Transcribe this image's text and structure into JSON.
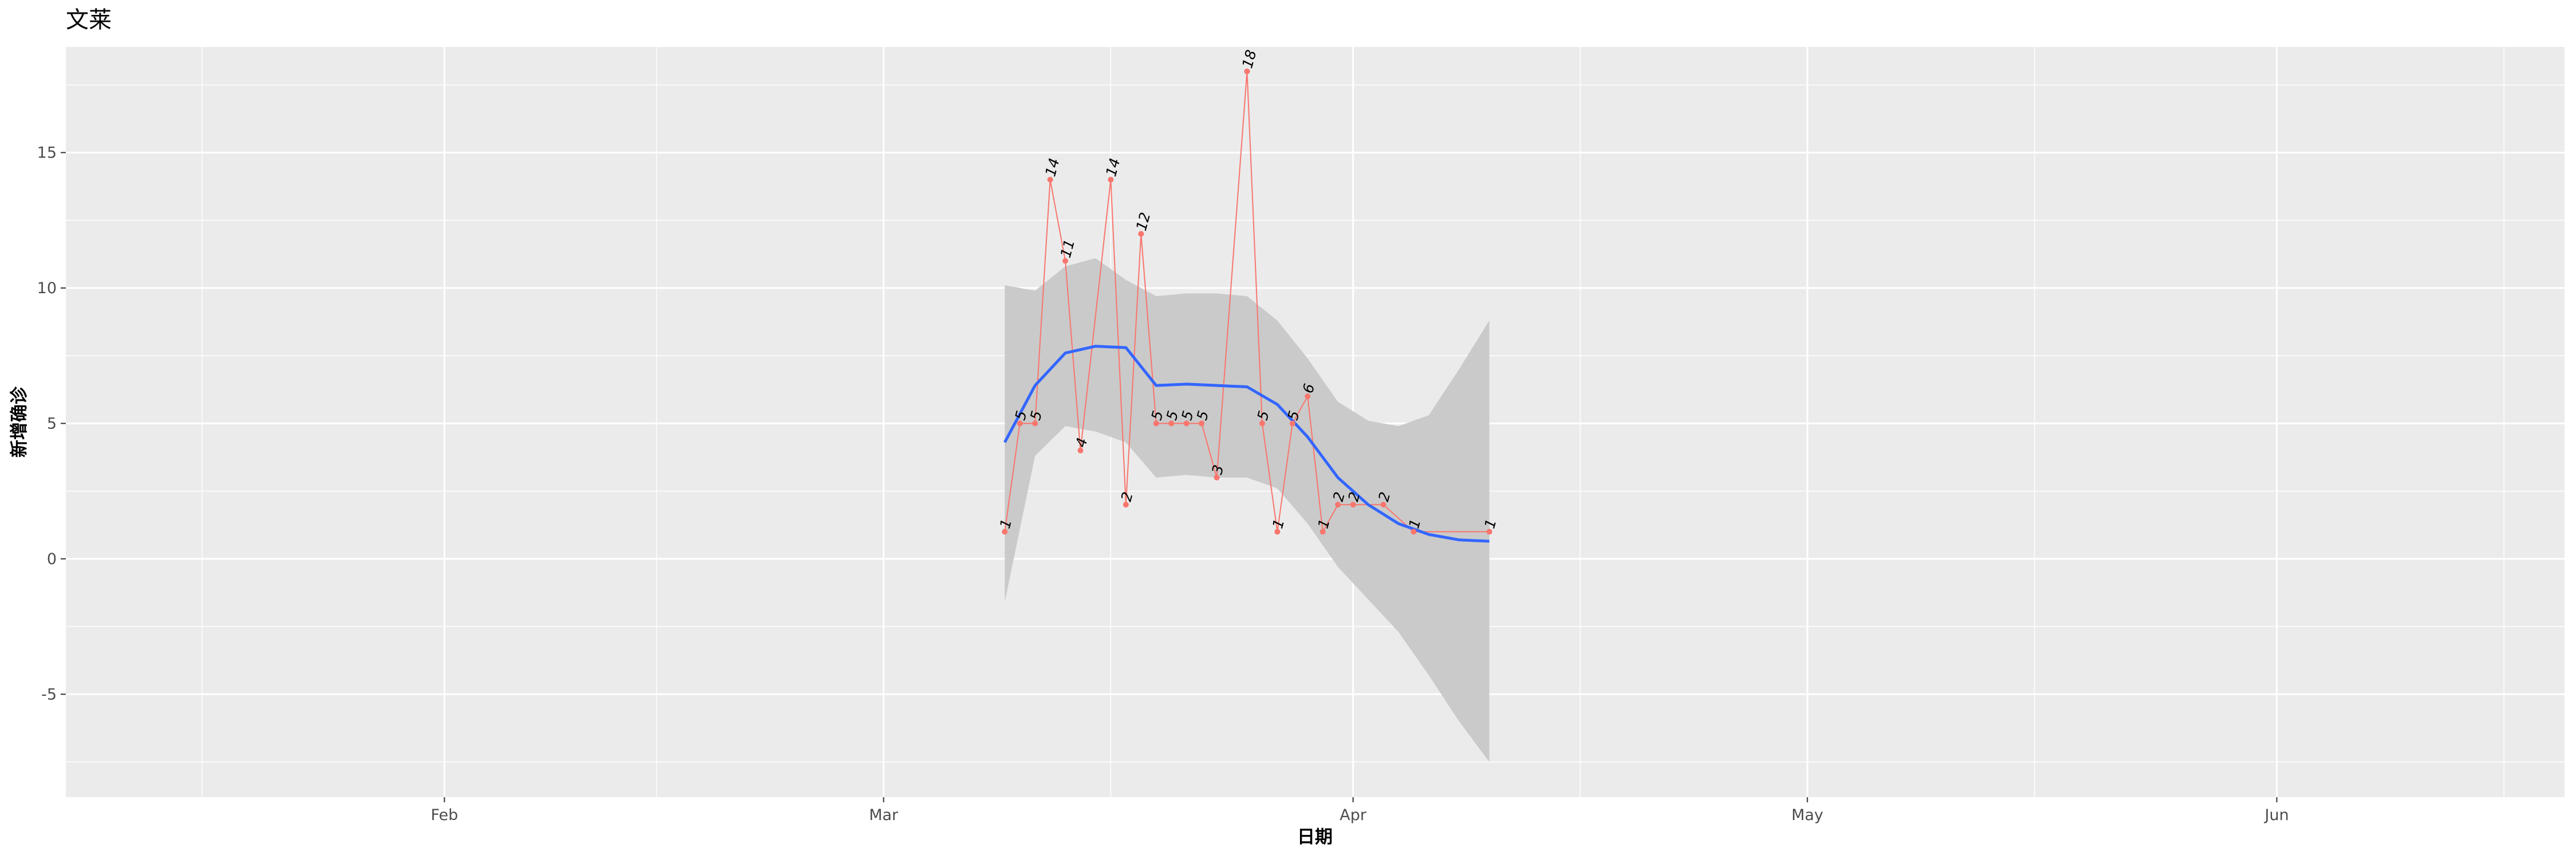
{
  "chart_data": {
    "type": "line",
    "title": "文莱",
    "xlabel": "日期",
    "ylabel": "新增确诊",
    "x_axis": {
      "type": "date",
      "range": [
        "2020-01-07",
        "2020-06-20"
      ],
      "ticks": [
        {
          "date": "2020-02-01",
          "label": "Feb"
        },
        {
          "date": "2020-03-01",
          "label": "Mar"
        },
        {
          "date": "2020-04-01",
          "label": "Apr"
        },
        {
          "date": "2020-05-01",
          "label": "May"
        },
        {
          "date": "2020-06-01",
          "label": "Jun"
        }
      ],
      "minor_ticks": [
        "2020-01-16",
        "2020-02-15",
        "2020-03-16",
        "2020-04-16",
        "2020-05-16",
        "2020-06-16"
      ]
    },
    "y_axis": {
      "range": [
        -8.8,
        18.9
      ],
      "ticks": [
        {
          "value": -5,
          "label": "-5"
        },
        {
          "value": 0,
          "label": "0"
        },
        {
          "value": 5,
          "label": "5"
        },
        {
          "value": 10,
          "label": "10"
        },
        {
          "value": 15,
          "label": "15"
        }
      ],
      "minor_ticks": [
        -7.5,
        -2.5,
        2.5,
        7.5,
        12.5,
        17.5
      ]
    },
    "grid": true,
    "colors": {
      "panel_background": "#ebebeb",
      "grid_line": "#ffffff",
      "series_line": "#f8766d",
      "smooth_line": "#3366ff",
      "confidence_band": "#c8c8c8"
    },
    "series": [
      {
        "x": [
          "2020-03-09",
          "2020-03-10",
          "2020-03-11",
          "2020-03-12",
          "2020-03-13",
          "2020-03-14",
          "2020-03-16",
          "2020-03-17",
          "2020-03-18",
          "2020-03-19",
          "2020-03-20",
          "2020-03-21",
          "2020-03-22",
          "2020-03-23",
          "2020-03-25",
          "2020-03-26",
          "2020-03-27",
          "2020-03-28",
          "2020-03-29",
          "2020-03-30",
          "2020-03-31",
          "2020-04-01",
          "2020-04-03",
          "2020-04-05",
          "2020-04-10"
        ],
        "values": [
          1,
          5,
          5,
          14,
          11,
          4,
          14,
          2,
          12,
          5,
          5,
          5,
          5,
          3,
          18,
          5,
          1,
          5,
          6,
          1,
          2,
          2,
          2,
          1,
          1
        ],
        "labels": [
          "1",
          "5",
          "5",
          "14",
          "11",
          "4",
          "14",
          "2",
          "12",
          "5",
          "5",
          "5",
          "5",
          "3",
          "18",
          "5",
          "1",
          "5",
          "6",
          "1",
          "2",
          "2",
          "2",
          "1",
          "1"
        ]
      }
    ],
    "smooth": {
      "method": "loess",
      "x": [
        "2020-03-09",
        "2020-03-11",
        "2020-03-13",
        "2020-03-15",
        "2020-03-17",
        "2020-03-19",
        "2020-03-21",
        "2020-03-23",
        "2020-03-25",
        "2020-03-27",
        "2020-03-29",
        "2020-03-31",
        "2020-04-02",
        "2020-04-04",
        "2020-04-06",
        "2020-04-08",
        "2020-04-10"
      ],
      "fit": [
        4.3,
        6.4,
        7.6,
        7.85,
        7.8,
        6.4,
        6.45,
        6.4,
        6.35,
        5.7,
        4.5,
        3.0,
        2.0,
        1.3,
        0.9,
        0.7,
        0.65
      ],
      "lower": [
        -1.6,
        3.8,
        4.9,
        4.7,
        4.3,
        3.0,
        3.1,
        3.0,
        3.0,
        2.6,
        1.3,
        -0.3,
        -1.5,
        -2.7,
        -4.3,
        -6.0,
        -7.5
      ],
      "upper": [
        10.1,
        9.9,
        10.8,
        11.1,
        10.3,
        9.7,
        9.8,
        9.8,
        9.7,
        8.8,
        7.4,
        5.8,
        5.1,
        4.9,
        5.3,
        7.0,
        8.8
      ]
    }
  }
}
